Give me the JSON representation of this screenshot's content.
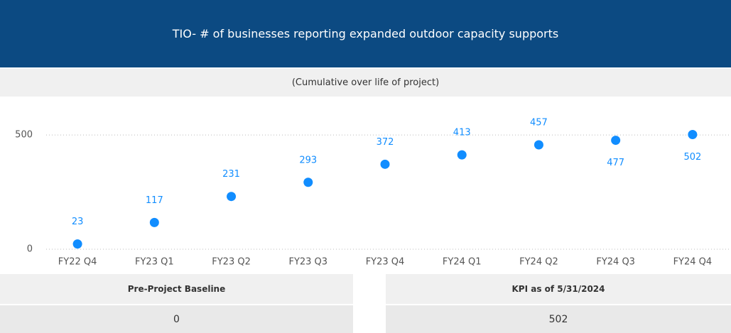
{
  "chart_data": {
    "type": "scatter",
    "title": "TIO- # of businesses reporting expanded outdoor capacity supports",
    "subtitle": "(Cumulative over life of project)",
    "categories": [
      "FY22 Q4",
      "FY23 Q1",
      "FY23 Q2",
      "FY23 Q3",
      "FY23 Q4",
      "FY24 Q1",
      "FY24 Q2",
      "FY24 Q3",
      "FY24 Q4"
    ],
    "values": [
      23,
      117,
      231,
      293,
      372,
      413,
      457,
      477,
      502
    ],
    "color": "#118dff",
    "ylim": [
      0,
      600
    ],
    "yticks": [
      0,
      500
    ],
    "grid": true
  },
  "cards": [
    {
      "label": "Pre-Project Baseline",
      "value": "0"
    },
    {
      "label": "KPI as of 5/31/2024",
      "value": "502"
    }
  ]
}
